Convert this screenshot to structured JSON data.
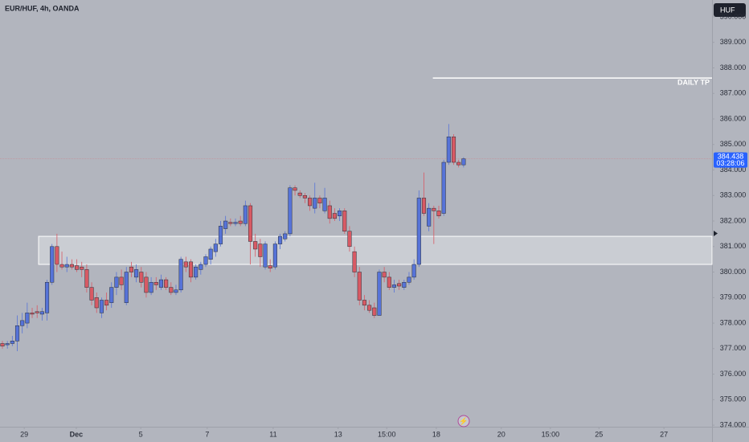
{
  "chart_data": {
    "type": "candlestick",
    "title": "EUR/HUF, 4h, OANDA",
    "currency": "HUF",
    "last_price": 384.438,
    "countdown": "03:28:06",
    "up_color": "#5673d8",
    "down_color": "#d85a64",
    "annotations": [
      {
        "text": "DAILY TP",
        "level": 387.6,
        "from": 86.8
      }
    ],
    "zone": [
      380.3,
      381.4
    ],
    "zone_from": 7.3,
    "ylim": [
      373.94,
      390.66
    ],
    "yticks": [
      {
        "value": 374,
        "label": "374.000"
      },
      {
        "value": 375,
        "label": "375.000"
      },
      {
        "value": 376,
        "label": "376.000"
      },
      {
        "value": 377,
        "label": "377.000"
      },
      {
        "value": 378,
        "label": "378.000"
      },
      {
        "value": 379,
        "label": "379.000"
      },
      {
        "value": 380,
        "label": "380.000"
      },
      {
        "value": 381,
        "label": "381.000"
      },
      {
        "value": 382,
        "label": "382.000"
      },
      {
        "value": 383,
        "label": "383.000"
      },
      {
        "value": 384,
        "label": "384.000"
      },
      {
        "value": 385,
        "label": "385.000"
      },
      {
        "value": 386,
        "label": "386.000"
      },
      {
        "value": 387,
        "label": "387.000"
      },
      {
        "value": 388,
        "label": "388.000"
      },
      {
        "value": 389,
        "label": "389.000"
      },
      {
        "value": 390,
        "label": "390.000"
      }
    ],
    "xlim": [
      -0.486,
      143.1
    ],
    "xticks": [
      {
        "value": 4.4,
        "label": "29"
      },
      {
        "value": 14.9,
        "label": "Dec"
      },
      {
        "value": 27.9,
        "label": "5"
      },
      {
        "value": 41.3,
        "label": "7"
      },
      {
        "value": 54.6,
        "label": "11"
      },
      {
        "value": 67.7,
        "label": "13"
      },
      {
        "value": 77.5,
        "label": "15:00"
      },
      {
        "value": 87.5,
        "label": "18"
      },
      {
        "value": 100.6,
        "label": "20"
      },
      {
        "value": 110.5,
        "label": "15:00"
      },
      {
        "value": 120.3,
        "label": "25"
      },
      {
        "value": 133.4,
        "label": "27"
      }
    ],
    "candles": [
      [
        377.2,
        377.3,
        377.0,
        377.1
      ],
      [
        377.15,
        377.3,
        377.0,
        377.2
      ],
      [
        377.2,
        377.5,
        377.1,
        377.3
      ],
      [
        377.3,
        378.3,
        376.9,
        377.9
      ],
      [
        377.9,
        378.4,
        377.6,
        378.1
      ],
      [
        378.0,
        378.8,
        377.8,
        378.4
      ],
      [
        378.4,
        378.6,
        378.2,
        378.35
      ],
      [
        378.45,
        378.7,
        378.2,
        378.4
      ],
      [
        378.35,
        378.6,
        378.1,
        378.45
      ],
      [
        378.4,
        379.7,
        378.1,
        379.6
      ],
      [
        379.6,
        381.1,
        379.5,
        381.0
      ],
      [
        381.0,
        381.5,
        380.0,
        380.3
      ],
      [
        380.3,
        380.8,
        380.1,
        380.2
      ],
      [
        380.2,
        380.6,
        380.0,
        380.3
      ],
      [
        380.3,
        380.5,
        380.1,
        380.2
      ],
      [
        380.25,
        380.5,
        380.0,
        380.1
      ],
      [
        380.2,
        380.4,
        379.8,
        380.1
      ],
      [
        380.1,
        380.3,
        379.2,
        379.4
      ],
      [
        379.4,
        379.6,
        378.7,
        378.9
      ],
      [
        379.0,
        379.2,
        378.4,
        378.6
      ],
      [
        378.4,
        379.0,
        378.2,
        378.9
      ],
      [
        378.9,
        379.2,
        378.5,
        378.7
      ],
      [
        378.8,
        379.6,
        378.6,
        379.4
      ],
      [
        379.4,
        380.0,
        379.1,
        379.8
      ],
      [
        379.8,
        380.1,
        379.3,
        379.5
      ],
      [
        378.8,
        380.2,
        378.7,
        380.0
      ],
      [
        380.2,
        380.4,
        379.8,
        380.0
      ],
      [
        379.8,
        380.3,
        379.6,
        380.1
      ],
      [
        380.0,
        380.2,
        379.4,
        379.6
      ],
      [
        379.8,
        380.0,
        379.0,
        379.2
      ],
      [
        379.2,
        379.8,
        379.1,
        379.6
      ],
      [
        379.6,
        379.8,
        379.3,
        379.5
      ],
      [
        379.4,
        379.9,
        379.3,
        379.7
      ],
      [
        379.7,
        379.8,
        379.3,
        379.4
      ],
      [
        379.4,
        379.6,
        379.1,
        379.2
      ],
      [
        379.2,
        379.5,
        379.1,
        379.3
      ],
      [
        379.3,
        380.6,
        379.2,
        380.5
      ],
      [
        380.4,
        380.6,
        380.0,
        380.2
      ],
      [
        380.4,
        380.5,
        379.6,
        379.8
      ],
      [
        379.8,
        380.3,
        379.7,
        380.2
      ],
      [
        380.1,
        380.4,
        379.9,
        380.3
      ],
      [
        380.3,
        380.7,
        380.2,
        380.6
      ],
      [
        380.5,
        381.0,
        380.3,
        380.9
      ],
      [
        380.8,
        381.3,
        380.6,
        381.1
      ],
      [
        381.1,
        382.0,
        381.0,
        381.8
      ],
      [
        381.7,
        382.2,
        381.5,
        382.0
      ],
      [
        381.95,
        382.1,
        381.8,
        381.9
      ],
      [
        381.9,
        382.1,
        381.8,
        381.95
      ],
      [
        382.0,
        382.2,
        381.8,
        381.9
      ],
      [
        381.9,
        382.8,
        381.8,
        382.6
      ],
      [
        382.6,
        382.7,
        380.3,
        381.2
      ],
      [
        381.2,
        381.5,
        380.6,
        380.9
      ],
      [
        381.1,
        381.3,
        380.2,
        380.6
      ],
      [
        380.2,
        381.2,
        380.1,
        381.1
      ],
      [
        380.25,
        380.5,
        380.0,
        380.15
      ],
      [
        380.2,
        381.2,
        380.1,
        381.1
      ],
      [
        381.1,
        381.5,
        380.9,
        381.4
      ],
      [
        381.3,
        381.6,
        381.2,
        381.5
      ],
      [
        381.5,
        383.4,
        381.4,
        383.3
      ],
      [
        383.3,
        383.4,
        383.0,
        383.2
      ],
      [
        383.1,
        383.2,
        382.9,
        383.0
      ],
      [
        383.0,
        383.1,
        382.7,
        382.9
      ],
      [
        382.9,
        383.0,
        382.4,
        382.6
      ],
      [
        382.5,
        383.5,
        382.3,
        382.9
      ],
      [
        382.9,
        383.0,
        382.5,
        382.7
      ],
      [
        382.4,
        383.3,
        382.3,
        382.9
      ],
      [
        382.6,
        382.8,
        381.9,
        382.1
      ],
      [
        382.3,
        382.5,
        382.0,
        382.1
      ],
      [
        382.2,
        382.5,
        382.0,
        382.4
      ],
      [
        382.4,
        382.5,
        381.5,
        381.6
      ],
      [
        381.6,
        381.8,
        380.8,
        381.0
      ],
      [
        380.8,
        381.0,
        379.8,
        380.0
      ],
      [
        380.0,
        380.2,
        378.7,
        378.9
      ],
      [
        378.9,
        379.1,
        378.5,
        378.7
      ],
      [
        378.7,
        378.9,
        378.4,
        378.5
      ],
      [
        378.6,
        378.8,
        378.2,
        378.3
      ],
      [
        378.3,
        380.1,
        378.3,
        380.0
      ],
      [
        380.0,
        380.2,
        379.6,
        379.8
      ],
      [
        379.8,
        380.0,
        379.3,
        379.4
      ],
      [
        379.4,
        379.7,
        379.2,
        379.5
      ],
      [
        379.55,
        379.7,
        379.3,
        379.45
      ],
      [
        379.4,
        379.7,
        379.3,
        379.6
      ],
      [
        379.6,
        380.0,
        379.5,
        379.8
      ],
      [
        379.8,
        380.5,
        379.7,
        380.3
      ],
      [
        380.3,
        383.2,
        380.2,
        382.9
      ],
      [
        382.9,
        383.9,
        382.2,
        382.3
      ],
      [
        381.8,
        382.7,
        381.6,
        382.5
      ],
      [
        382.5,
        382.6,
        381.1,
        382.4
      ],
      [
        382.4,
        382.6,
        382.1,
        382.2
      ],
      [
        382.3,
        384.4,
        382.2,
        384.3
      ],
      [
        384.3,
        385.8,
        384.2,
        385.3
      ],
      [
        385.3,
        385.4,
        384.2,
        384.3
      ],
      [
        384.3,
        384.4,
        384.1,
        384.2
      ],
      [
        384.2,
        384.5,
        384.1,
        384.438
      ]
    ]
  }
}
